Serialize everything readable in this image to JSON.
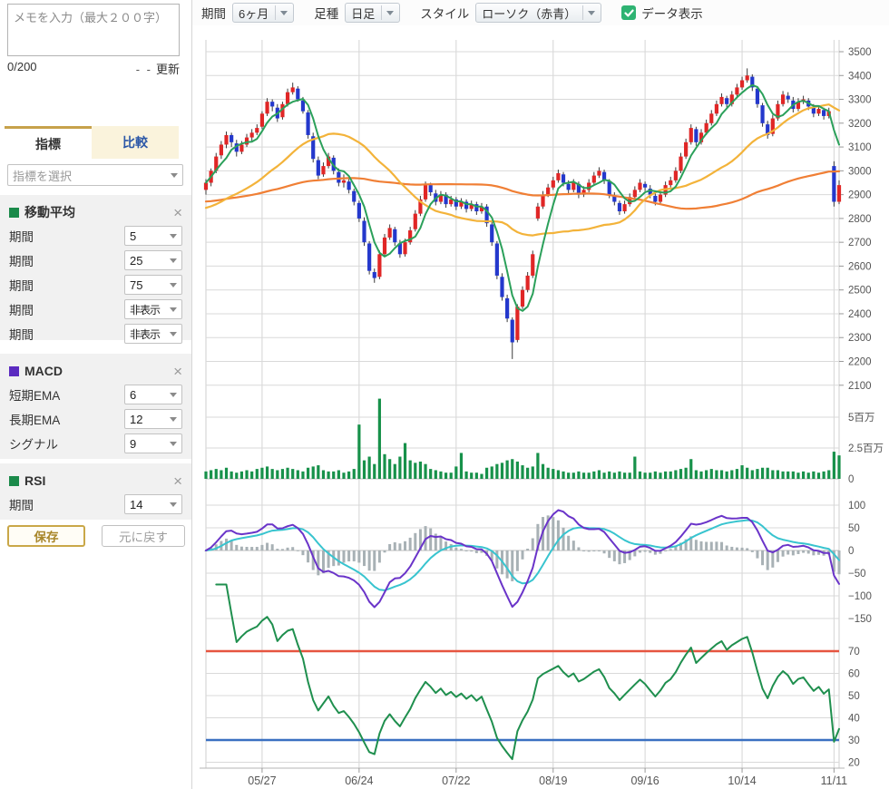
{
  "memo": {
    "placeholder": "メモを入力（最大２００字）",
    "counter": "0/200",
    "update_placeholder": "- -",
    "update_label": "更新"
  },
  "tabs": {
    "indicator": "指標",
    "compare": "比較"
  },
  "indicator_select": {
    "placeholder": "指標を選択"
  },
  "panels": {
    "ma": {
      "title": "移動平均",
      "color": "#1a8a4a",
      "close": "×",
      "rows": [
        {
          "label": "期間",
          "value": "5"
        },
        {
          "label": "期間",
          "value": "25"
        },
        {
          "label": "期間",
          "value": "75"
        },
        {
          "label": "期間",
          "value": "非表示"
        },
        {
          "label": "期間",
          "value": "非表示"
        }
      ]
    },
    "macd": {
      "title": "MACD",
      "color": "#5b2bc0",
      "close": "×",
      "rows": [
        {
          "label": "短期EMA",
          "value": "6"
        },
        {
          "label": "長期EMA",
          "value": "12"
        },
        {
          "label": "シグナル",
          "value": "9"
        }
      ]
    },
    "rsi": {
      "title": "RSI",
      "color": "#1a8a4a",
      "close": "×",
      "rows": [
        {
          "label": "期間",
          "value": "14"
        }
      ]
    }
  },
  "buttons": {
    "save": "保存",
    "reset": "元に戻す"
  },
  "toolbar": {
    "period_label": "期間",
    "period_value": "6ヶ月",
    "bartype_label": "足種",
    "bartype_value": "日足",
    "style_label": "スタイル",
    "style_value": "ローソク（赤青）",
    "data_display_label": "データ表示",
    "checkbox_color": "#2eb372",
    "checkbox_checked": true
  },
  "chart_data": {
    "type": "candlestick",
    "x_tick_labels": [
      "05/27",
      "06/24",
      "07/22",
      "08/19",
      "09/16",
      "10/14",
      "11/11"
    ],
    "x_tick_indices": [
      11,
      30,
      49,
      68,
      86,
      105,
      123
    ],
    "main": {
      "ylim": [
        2050,
        3550
      ],
      "yticks": [
        2100,
        2200,
        2300,
        2400,
        2500,
        2600,
        2700,
        2800,
        2900,
        3000,
        3100,
        3200,
        3300,
        3400,
        3500
      ],
      "up_color": "#e02626",
      "down_color": "#2438cc",
      "wick_color": "#3a3a3a",
      "ma": [
        {
          "period": 5,
          "color": "#2ba05a",
          "prehistory_mean": null
        },
        {
          "period": 25,
          "color": "#f3b33a",
          "prehistory_mean": 2840
        },
        {
          "period": 75,
          "color": "#f07f35",
          "prehistory_mean": 2870
        }
      ],
      "candles": [
        [
          2920,
          2965,
          2900,
          2950
        ],
        [
          2950,
          3010,
          2935,
          3000
        ],
        [
          3000,
          3075,
          2990,
          3060
        ],
        [
          3065,
          3125,
          3050,
          3110
        ],
        [
          3110,
          3165,
          3095,
          3150
        ],
        [
          3150,
          3160,
          3100,
          3120
        ],
        [
          3115,
          3130,
          3060,
          3080
        ],
        [
          3080,
          3125,
          3070,
          3110
        ],
        [
          3110,
          3155,
          3100,
          3140
        ],
        [
          3140,
          3175,
          3125,
          3160
        ],
        [
          3160,
          3195,
          3150,
          3180
        ],
        [
          3185,
          3250,
          3175,
          3240
        ],
        [
          3240,
          3305,
          3230,
          3290
        ],
        [
          3290,
          3300,
          3250,
          3270
        ],
        [
          3265,
          3280,
          3205,
          3220
        ],
        [
          3225,
          3290,
          3215,
          3280
        ],
        [
          3280,
          3345,
          3270,
          3330
        ],
        [
          3330,
          3370,
          3320,
          3350
        ],
        [
          3345,
          3355,
          3290,
          3300
        ],
        [
          3295,
          3310,
          3240,
          3250
        ],
        [
          3245,
          3255,
          3135,
          3150
        ],
        [
          3145,
          3160,
          3035,
          3050
        ],
        [
          3045,
          3060,
          2965,
          2980
        ],
        [
          2985,
          3035,
          2975,
          3020
        ],
        [
          3020,
          3075,
          3010,
          3060
        ],
        [
          3055,
          3065,
          2985,
          3000
        ],
        [
          2995,
          3010,
          2935,
          2950
        ],
        [
          2950,
          2985,
          2930,
          2960
        ],
        [
          2955,
          2965,
          2905,
          2920
        ],
        [
          2915,
          2925,
          2855,
          2870
        ],
        [
          2865,
          2875,
          2785,
          2800
        ],
        [
          2790,
          2805,
          2685,
          2700
        ],
        [
          2695,
          2705,
          2565,
          2580
        ],
        [
          2575,
          2590,
          2530,
          2550
        ],
        [
          2555,
          2665,
          2545,
          2650
        ],
        [
          2650,
          2735,
          2640,
          2720
        ],
        [
          2720,
          2775,
          2710,
          2760
        ],
        [
          2755,
          2765,
          2685,
          2700
        ],
        [
          2695,
          2710,
          2635,
          2650
        ],
        [
          2650,
          2715,
          2640,
          2700
        ],
        [
          2700,
          2765,
          2690,
          2750
        ],
        [
          2755,
          2835,
          2745,
          2820
        ],
        [
          2820,
          2895,
          2810,
          2880
        ],
        [
          2880,
          2955,
          2870,
          2940
        ],
        [
          2940,
          2950,
          2895,
          2910
        ],
        [
          2905,
          2920,
          2855,
          2870
        ],
        [
          2870,
          2915,
          2860,
          2900
        ],
        [
          2900,
          2910,
          2845,
          2860
        ],
        [
          2860,
          2895,
          2850,
          2880
        ],
        [
          2880,
          2890,
          2835,
          2850
        ],
        [
          2850,
          2885,
          2840,
          2870
        ],
        [
          2870,
          2880,
          2825,
          2840
        ],
        [
          2840,
          2875,
          2830,
          2860
        ],
        [
          2860,
          2870,
          2815,
          2830
        ],
        [
          2830,
          2865,
          2820,
          2850
        ],
        [
          2850,
          2860,
          2765,
          2780
        ],
        [
          2775,
          2790,
          2685,
          2700
        ],
        [
          2695,
          2705,
          2545,
          2560
        ],
        [
          2555,
          2570,
          2455,
          2470
        ],
        [
          2465,
          2480,
          2365,
          2380
        ],
        [
          2375,
          2385,
          2210,
          2280
        ],
        [
          2290,
          2440,
          2280,
          2430
        ],
        [
          2430,
          2515,
          2420,
          2500
        ],
        [
          2500,
          2575,
          2490,
          2560
        ],
        [
          2560,
          2665,
          2550,
          2650
        ],
        [
          2800,
          2865,
          2790,
          2850
        ],
        [
          2850,
          2915,
          2840,
          2900
        ],
        [
          2900,
          2945,
          2890,
          2930
        ],
        [
          2930,
          2975,
          2920,
          2960
        ],
        [
          2960,
          3005,
          2950,
          2990
        ],
        [
          2985,
          2995,
          2935,
          2950
        ],
        [
          2945,
          2960,
          2905,
          2920
        ],
        [
          2920,
          2965,
          2910,
          2950
        ],
        [
          2945,
          2955,
          2885,
          2900
        ],
        [
          2900,
          2935,
          2890,
          2920
        ],
        [
          2920,
          2965,
          2910,
          2950
        ],
        [
          2950,
          2995,
          2940,
          2980
        ],
        [
          2980,
          3015,
          2970,
          3000
        ],
        [
          2995,
          3005,
          2945,
          2960
        ],
        [
          2955,
          2965,
          2885,
          2900
        ],
        [
          2895,
          2910,
          2855,
          2870
        ],
        [
          2865,
          2875,
          2815,
          2830
        ],
        [
          2830,
          2875,
          2820,
          2860
        ],
        [
          2860,
          2905,
          2850,
          2890
        ],
        [
          2890,
          2935,
          2880,
          2920
        ],
        [
          2920,
          2965,
          2910,
          2950
        ],
        [
          2945,
          2955,
          2915,
          2930
        ],
        [
          2925,
          2940,
          2885,
          2900
        ],
        [
          2895,
          2905,
          2855,
          2870
        ],
        [
          2870,
          2915,
          2860,
          2900
        ],
        [
          2900,
          2955,
          2890,
          2940
        ],
        [
          2940,
          2975,
          2930,
          2960
        ],
        [
          2960,
          3015,
          2950,
          3000
        ],
        [
          3000,
          3075,
          2990,
          3060
        ],
        [
          3060,
          3135,
          3050,
          3120
        ],
        [
          3120,
          3195,
          3110,
          3180
        ],
        [
          3175,
          3185,
          3105,
          3120
        ],
        [
          3120,
          3175,
          3110,
          3160
        ],
        [
          3160,
          3215,
          3150,
          3200
        ],
        [
          3200,
          3255,
          3190,
          3240
        ],
        [
          3240,
          3295,
          3230,
          3280
        ],
        [
          3280,
          3325,
          3270,
          3310
        ],
        [
          3305,
          3315,
          3265,
          3280
        ],
        [
          3280,
          3335,
          3270,
          3320
        ],
        [
          3320,
          3365,
          3310,
          3350
        ],
        [
          3350,
          3395,
          3340,
          3380
        ],
        [
          3380,
          3430,
          3370,
          3400
        ],
        [
          3395,
          3405,
          3335,
          3350
        ],
        [
          3345,
          3355,
          3265,
          3280
        ],
        [
          3275,
          3285,
          3185,
          3200
        ],
        [
          3195,
          3210,
          3135,
          3150
        ],
        [
          3155,
          3235,
          3145,
          3220
        ],
        [
          3220,
          3295,
          3210,
          3280
        ],
        [
          3280,
          3335,
          3270,
          3320
        ],
        [
          3315,
          3330,
          3285,
          3300
        ],
        [
          3295,
          3310,
          3245,
          3260
        ],
        [
          3260,
          3305,
          3250,
          3290
        ],
        [
          3290,
          3315,
          3280,
          3300
        ],
        [
          3295,
          3305,
          3255,
          3270
        ],
        [
          3265,
          3280,
          3225,
          3240
        ],
        [
          3240,
          3275,
          3230,
          3260
        ],
        [
          3255,
          3265,
          3215,
          3230
        ],
        [
          3230,
          3265,
          3220,
          3250
        ],
        [
          3020,
          3040,
          2850,
          2870
        ],
        [
          2870,
          2960,
          2860,
          2940
        ]
      ]
    },
    "volume": {
      "unit": "百万",
      "ytick_labels": [
        "5百万",
        "2.5百万",
        "0"
      ],
      "ytick_values_millions": [
        5,
        2.5,
        0
      ],
      "color": "#17914a",
      "values_millions": [
        0.6,
        0.7,
        0.8,
        0.7,
        0.9,
        0.6,
        0.5,
        0.6,
        0.7,
        0.6,
        0.8,
        0.9,
        1.0,
        0.8,
        0.7,
        0.8,
        0.9,
        0.8,
        0.7,
        0.6,
        0.9,
        1.0,
        1.1,
        0.7,
        0.6,
        0.6,
        0.7,
        0.5,
        0.6,
        0.8,
        4.4,
        1.5,
        1.8,
        1.2,
        6.5,
        2.0,
        1.6,
        1.2,
        1.8,
        2.9,
        1.5,
        1.3,
        1.4,
        1.2,
        0.8,
        0.7,
        0.6,
        0.5,
        0.5,
        1.0,
        2.1,
        0.6,
        0.5,
        0.5,
        0.4,
        0.9,
        1.0,
        1.2,
        1.3,
        1.5,
        1.6,
        1.4,
        1.1,
        0.9,
        1.0,
        2.1,
        1.2,
        0.9,
        0.8,
        0.7,
        0.6,
        0.5,
        0.5,
        0.6,
        0.5,
        0.5,
        0.6,
        0.7,
        0.5,
        0.6,
        0.5,
        0.6,
        0.5,
        0.5,
        1.8,
        0.6,
        0.5,
        0.5,
        0.6,
        0.5,
        0.6,
        0.6,
        0.7,
        0.8,
        0.9,
        1.6,
        0.7,
        0.6,
        0.7,
        0.8,
        0.7,
        0.7,
        0.6,
        0.7,
        0.8,
        1.1,
        0.9,
        0.7,
        0.8,
        0.9,
        0.9,
        0.7,
        0.7,
        0.6,
        0.6,
        0.6,
        0.5,
        0.6,
        0.5,
        0.6,
        0.5,
        0.6,
        0.7,
        2.2,
        1.9
      ]
    },
    "macd": {
      "params": {
        "fast_ema": 6,
        "slow_ema": 12,
        "signal": 9
      },
      "yticks": [
        100,
        50,
        0,
        -50,
        -100,
        -150
      ],
      "macd_color": "#6a34c9",
      "signal_color": "#38c4cf",
      "hist_color": "#a8b1b5"
    },
    "rsi": {
      "period": 14,
      "yticks": [
        70,
        60,
        50,
        40,
        30,
        20
      ],
      "line_color": "#1f8f4e",
      "overbought": {
        "value": 70,
        "color": "#e65540"
      },
      "oversold": {
        "value": 30,
        "color": "#3a70c1"
      }
    }
  }
}
